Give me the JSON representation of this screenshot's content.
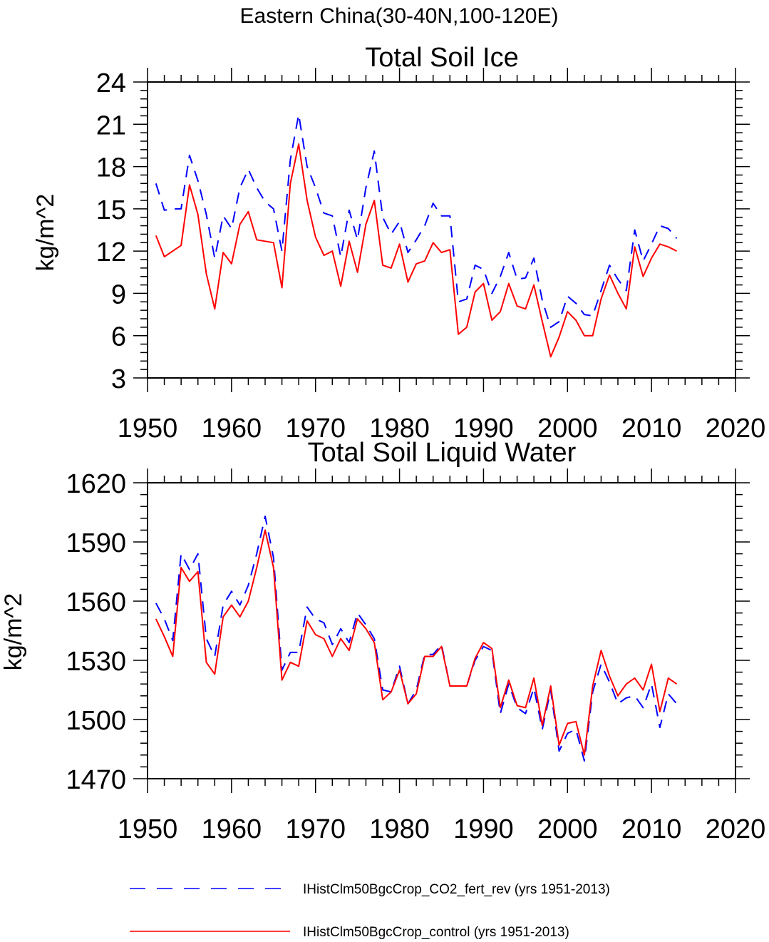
{
  "figure_title": "Eastern China(30-40N,100-120E)",
  "legend": [
    {
      "label": "IHistClm50BgcCrop_CO2_fert_rev (yrs 1951-2013)",
      "color": "#0000ff",
      "dash": "dashed"
    },
    {
      "label": "IHistClm50BgcCrop_control (yrs 1951-2013)",
      "color": "#ff0000",
      "dash": "solid"
    }
  ],
  "chart_data": [
    {
      "type": "line",
      "title": "Total Soil Ice",
      "xlabel": "",
      "ylabel": "kg/m^2",
      "xlim": [
        1950,
        2020
      ],
      "ylim": [
        3,
        24
      ],
      "xticks": [
        1950,
        1960,
        1970,
        1980,
        1990,
        2000,
        2010,
        2020
      ],
      "yticks": [
        3,
        6,
        9,
        12,
        15,
        18,
        21,
        24
      ],
      "x": [
        1951,
        1952,
        1953,
        1954,
        1955,
        1956,
        1957,
        1958,
        1959,
        1960,
        1961,
        1962,
        1963,
        1964,
        1965,
        1966,
        1967,
        1968,
        1969,
        1970,
        1971,
        1972,
        1973,
        1974,
        1975,
        1976,
        1977,
        1978,
        1979,
        1980,
        1981,
        1982,
        1983,
        1984,
        1985,
        1986,
        1987,
        1988,
        1989,
        1990,
        1991,
        1992,
        1993,
        1994,
        1995,
        1996,
        1997,
        1998,
        1999,
        2000,
        2001,
        2002,
        2003,
        2004,
        2005,
        2006,
        2007,
        2008,
        2009,
        2010,
        2011,
        2012,
        2013
      ],
      "series": [
        {
          "name": "IHistClm50BgcCrop_CO2_fert_rev (yrs 1951-2013)",
          "color": "#0000ff",
          "dash": "dashed",
          "values": [
            16.8,
            14.9,
            15.0,
            15.0,
            18.8,
            17.0,
            14.6,
            11.5,
            14.5,
            13.6,
            16.5,
            17.8,
            16.5,
            15.5,
            15.0,
            12.0,
            18.5,
            21.7,
            18.0,
            16.5,
            14.7,
            14.5,
            11.6,
            14.9,
            12.8,
            16.5,
            19.1,
            14.4,
            13.2,
            14.1,
            11.9,
            12.8,
            13.8,
            15.4,
            14.5,
            14.5,
            8.4,
            8.6,
            11.0,
            10.7,
            9.0,
            10.2,
            11.9,
            10.0,
            10.1,
            11.5,
            8.5,
            6.6,
            7.0,
            8.8,
            8.3,
            7.5,
            7.4,
            9.2,
            11.0,
            10.0,
            9.2,
            13.5,
            11.3,
            12.5,
            13.8,
            13.6,
            12.9
          ]
        },
        {
          "name": "IHistClm50BgcCrop_control (yrs 1951-2013)",
          "color": "#ff0000",
          "dash": "solid",
          "values": [
            13.1,
            11.6,
            12.0,
            12.4,
            16.7,
            14.6,
            10.4,
            7.9,
            11.9,
            11.1,
            13.9,
            14.8,
            12.8,
            12.7,
            12.6,
            9.4,
            16.8,
            19.6,
            15.6,
            13.0,
            11.7,
            12.0,
            9.5,
            12.7,
            10.5,
            13.9,
            15.6,
            11.0,
            10.8,
            12.5,
            9.8,
            11.1,
            11.3,
            12.6,
            11.9,
            12.1,
            6.1,
            6.6,
            9.1,
            9.7,
            7.1,
            7.7,
            9.7,
            8.1,
            7.9,
            9.6,
            7.0,
            4.5,
            5.9,
            7.7,
            7.1,
            6.0,
            6.0,
            8.6,
            10.3,
            9.0,
            7.9,
            12.3,
            10.2,
            11.5,
            12.5,
            12.3,
            12.0
          ]
        }
      ]
    },
    {
      "type": "line",
      "title": "Total Soil Liquid Water",
      "xlabel": "",
      "ylabel": "kg/m^2",
      "xlim": [
        1950,
        2020
      ],
      "ylim": [
        1470,
        1620
      ],
      "xticks": [
        1950,
        1960,
        1970,
        1980,
        1990,
        2000,
        2010,
        2020
      ],
      "yticks": [
        1470,
        1500,
        1530,
        1560,
        1590,
        1620
      ],
      "x": [
        1951,
        1952,
        1953,
        1954,
        1955,
        1956,
        1957,
        1958,
        1959,
        1960,
        1961,
        1962,
        1963,
        1964,
        1965,
        1966,
        1967,
        1968,
        1969,
        1970,
        1971,
        1972,
        1973,
        1974,
        1975,
        1976,
        1977,
        1978,
        1979,
        1980,
        1981,
        1982,
        1983,
        1984,
        1985,
        1986,
        1987,
        1988,
        1989,
        1990,
        1991,
        1992,
        1993,
        1994,
        1995,
        1996,
        1997,
        1998,
        1999,
        2000,
        2001,
        2002,
        2003,
        2004,
        2005,
        2006,
        2007,
        2008,
        2009,
        2010,
        2011,
        2012,
        2013
      ],
      "series": [
        {
          "name": "IHistClm50BgcCrop_CO2_fert_rev (yrs 1951-2013)",
          "color": "#0000ff",
          "dash": "dashed",
          "values": [
            1559,
            1551,
            1540,
            1584,
            1576,
            1584,
            1541,
            1532,
            1558,
            1565,
            1558,
            1568,
            1584,
            1603,
            1582,
            1525,
            1534,
            1534,
            1557,
            1551,
            1549,
            1538,
            1546,
            1539,
            1554,
            1548,
            1541,
            1515,
            1514,
            1527,
            1508,
            1515,
            1533,
            1533,
            1538,
            1517,
            1517,
            1517,
            1530,
            1537,
            1535,
            1503,
            1518,
            1506,
            1503,
            1516,
            1495,
            1515,
            1484,
            1493,
            1495,
            1479,
            1514,
            1528,
            1519,
            1508,
            1511,
            1512,
            1506,
            1518,
            1496,
            1513,
            1508
          ]
        },
        {
          "name": "IHistClm50BgcCrop_control (yrs 1951-2013)",
          "color": "#ff0000",
          "dash": "solid",
          "values": [
            1551,
            1542,
            1532,
            1577,
            1570,
            1575,
            1529,
            1523,
            1552,
            1558,
            1552,
            1560,
            1577,
            1596,
            1577,
            1520,
            1529,
            1527,
            1550,
            1543,
            1541,
            1532,
            1541,
            1535,
            1551,
            1546,
            1539,
            1510,
            1514,
            1525,
            1508,
            1513,
            1532,
            1532,
            1537,
            1517,
            1517,
            1517,
            1531,
            1539,
            1536,
            1506,
            1520,
            1507,
            1506,
            1521,
            1497,
            1517,
            1487,
            1498,
            1499,
            1482,
            1517,
            1535,
            1522,
            1512,
            1518,
            1521,
            1515,
            1528,
            1504,
            1521,
            1518
          ]
        }
      ]
    }
  ]
}
